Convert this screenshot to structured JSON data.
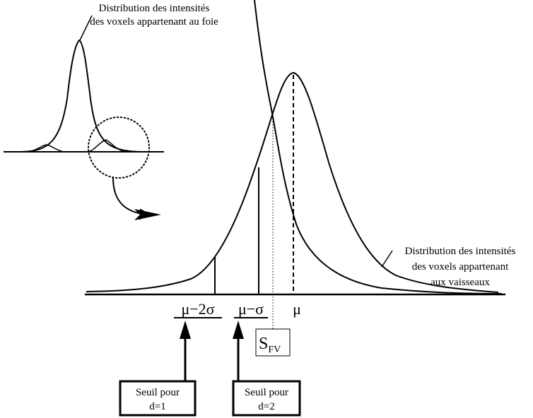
{
  "labels": {
    "liver_line1": "Distribution des intensités",
    "liver_line2": "des voxels appartenant au foie",
    "vessel_line1": "Distribution des intensités",
    "vessel_line2": "des voxels appartenant",
    "vessel_line3": "aux vaisseaux"
  },
  "axis": {
    "mu_minus_2sigma": "μ−2σ",
    "mu_minus_sigma": "μ−σ",
    "mu": "μ"
  },
  "threshold": {
    "s": "S",
    "sub": "FV"
  },
  "boxes": {
    "d1_line1": "Seuil pour",
    "d1_line2": "d=1",
    "d2_line1": "Seuil pour",
    "d2_line2": "d=2"
  }
}
